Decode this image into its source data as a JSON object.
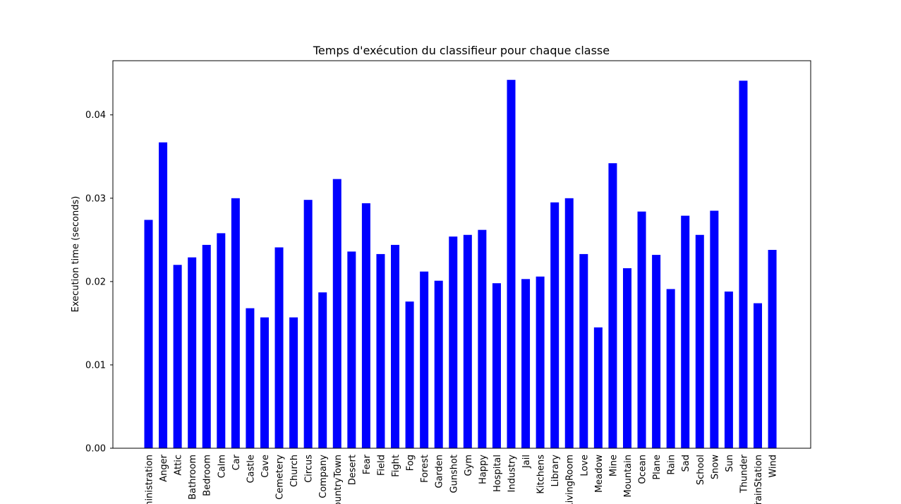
{
  "chart_data": {
    "type": "bar",
    "title": "Temps d'exécution du classifieur pour chaque classe",
    "xlabel": "",
    "ylabel": "Execution time (seconds)",
    "ylim": [
      0,
      0.0465
    ],
    "yticks": [
      "0.00",
      "0.01",
      "0.02",
      "0.03",
      "0.04"
    ],
    "bar_color": "#0000ff",
    "grid": false,
    "categories": [
      "Administration",
      "Anger",
      "Attic",
      "Bathroom",
      "Bedroom",
      "Calm",
      "Car",
      "Castle",
      "Cave",
      "Cemetery",
      "Church",
      "Circus",
      "Company",
      "CountryTown",
      "Desert",
      "Fear",
      "Field",
      "Fight",
      "Fog",
      "Forest",
      "Garden",
      "Gunshot",
      "Gym",
      "Happy",
      "Hospital",
      "Industry",
      "Jail",
      "Kitchens",
      "Library",
      "LivingRoom",
      "Love",
      "Meadow",
      "Mine",
      "Mountain",
      "Ocean",
      "Plane",
      "Rain",
      "Sad",
      "School",
      "Snow",
      "Sun",
      "Thunder",
      "TrainStation",
      "Wind"
    ],
    "values": [
      0.0274,
      0.0367,
      0.022,
      0.0229,
      0.0244,
      0.0258,
      0.03,
      0.0168,
      0.0157,
      0.0241,
      0.0157,
      0.0298,
      0.0187,
      0.0323,
      0.0236,
      0.0294,
      0.0233,
      0.0244,
      0.0176,
      0.0212,
      0.0201,
      0.0254,
      0.0256,
      0.0262,
      0.0198,
      0.0442,
      0.0203,
      0.0206,
      0.0295,
      0.03,
      0.0233,
      0.0145,
      0.0342,
      0.0216,
      0.0284,
      0.0232,
      0.0191,
      0.0279,
      0.0256,
      0.0285,
      0.0188,
      0.0441,
      0.0174,
      0.0238
    ]
  }
}
